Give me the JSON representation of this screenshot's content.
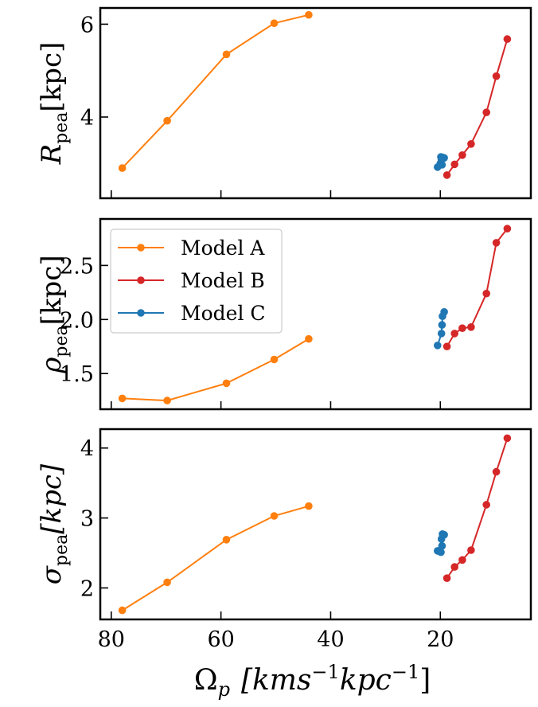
{
  "chart_data": {
    "type": "line",
    "x": {
      "label_symbol": "Ω",
      "label_sub": "p",
      "label_unit": "[kms",
      "label_sup1": "−1",
      "label_mid": "kpc",
      "label_sup2": "−1",
      "label_close": "]",
      "xlim": [
        82,
        3.5
      ],
      "ticks": [
        80,
        60,
        40,
        20
      ],
      "tick_labels": [
        "80",
        "60",
        "40",
        "20"
      ]
    },
    "series_style": [
      {
        "name": "Model A",
        "color": "#ff7f0e"
      },
      {
        "name": "Model B",
        "color": "#d62728"
      },
      {
        "name": "Model C",
        "color": "#1f77b4"
      }
    ],
    "panels": [
      {
        "ylabel_main": "R",
        "ylabel_sub": "pea",
        "ylabel_unit": "[kpc]",
        "ylabel_unit_italic": false,
        "ylim": [
          2.25,
          6.35
        ],
        "yticks": [
          4,
          6
        ],
        "ytick_labels": [
          "4",
          "6"
        ],
        "series": [
          {
            "name": "Model A",
            "x": [
              78.0,
              69.8,
              59.0,
              50.3,
              44.0
            ],
            "y": [
              2.9,
              3.92,
              5.35,
              6.02,
              6.2
            ]
          },
          {
            "name": "Model B",
            "x": [
              18.8,
              17.4,
              16.0,
              14.4,
              11.6,
              9.8,
              7.8
            ],
            "y": [
              2.75,
              2.98,
              3.18,
              3.42,
              4.1,
              4.88,
              5.68
            ]
          },
          {
            "name": "Model C",
            "x": [
              20.5,
              20.0,
              19.8,
              19.6,
              19.3,
              19.9,
              19.7
            ],
            "y": [
              2.92,
              3.0,
              3.08,
              3.13,
              3.12,
              3.14,
              2.97
            ]
          }
        ]
      },
      {
        "ylabel_main": "ρ",
        "ylabel_sub": "pea",
        "ylabel_unit": "[kpc]",
        "ylabel_unit_italic": false,
        "ylim": [
          1.17,
          2.93
        ],
        "yticks": [
          1.5,
          2.0,
          2.5
        ],
        "ytick_labels": [
          "1.5",
          "2.0",
          "2.5"
        ],
        "series": [
          {
            "name": "Model A",
            "x": [
              78.0,
              69.8,
              59.0,
              50.3,
              44.0
            ],
            "y": [
              1.27,
              1.25,
              1.41,
              1.63,
              1.82
            ]
          },
          {
            "name": "Model B",
            "x": [
              18.8,
              17.4,
              16.0,
              14.4,
              11.6,
              9.8,
              7.8
            ],
            "y": [
              1.75,
              1.87,
              1.92,
              1.93,
              2.24,
              2.71,
              2.84
            ]
          },
          {
            "name": "Model C",
            "x": [
              20.5,
              19.8,
              19.7,
              19.6,
              19.3
            ],
            "y": [
              1.76,
              1.87,
              1.95,
              2.03,
              2.07
            ]
          }
        ]
      },
      {
        "ylabel_main": "σ",
        "ylabel_sub": "pea",
        "ylabel_unit": "[kpc]",
        "ylabel_unit_italic": true,
        "ylim": [
          1.55,
          4.27
        ],
        "yticks": [
          2,
          3,
          4
        ],
        "ytick_labels": [
          "2",
          "3",
          "4"
        ],
        "series": [
          {
            "name": "Model A",
            "x": [
              78.0,
              69.8,
              59.0,
              50.3,
              44.0
            ],
            "y": [
              1.68,
              2.08,
              2.69,
              3.03,
              3.17
            ]
          },
          {
            "name": "Model B",
            "x": [
              18.8,
              17.4,
              16.0,
              14.4,
              11.6,
              9.8,
              7.8
            ],
            "y": [
              2.14,
              2.3,
              2.4,
              2.54,
              3.19,
              3.66,
              4.14
            ]
          },
          {
            "name": "Model C",
            "x": [
              20.5,
              19.9,
              19.7,
              19.8,
              19.6,
              19.3
            ],
            "y": [
              2.53,
              2.51,
              2.6,
              2.7,
              2.77,
              2.76
            ]
          }
        ]
      }
    ],
    "legend": {
      "location": "upper-left of middle panel",
      "entries": [
        "Model A",
        "Model B",
        "Model C"
      ]
    }
  }
}
